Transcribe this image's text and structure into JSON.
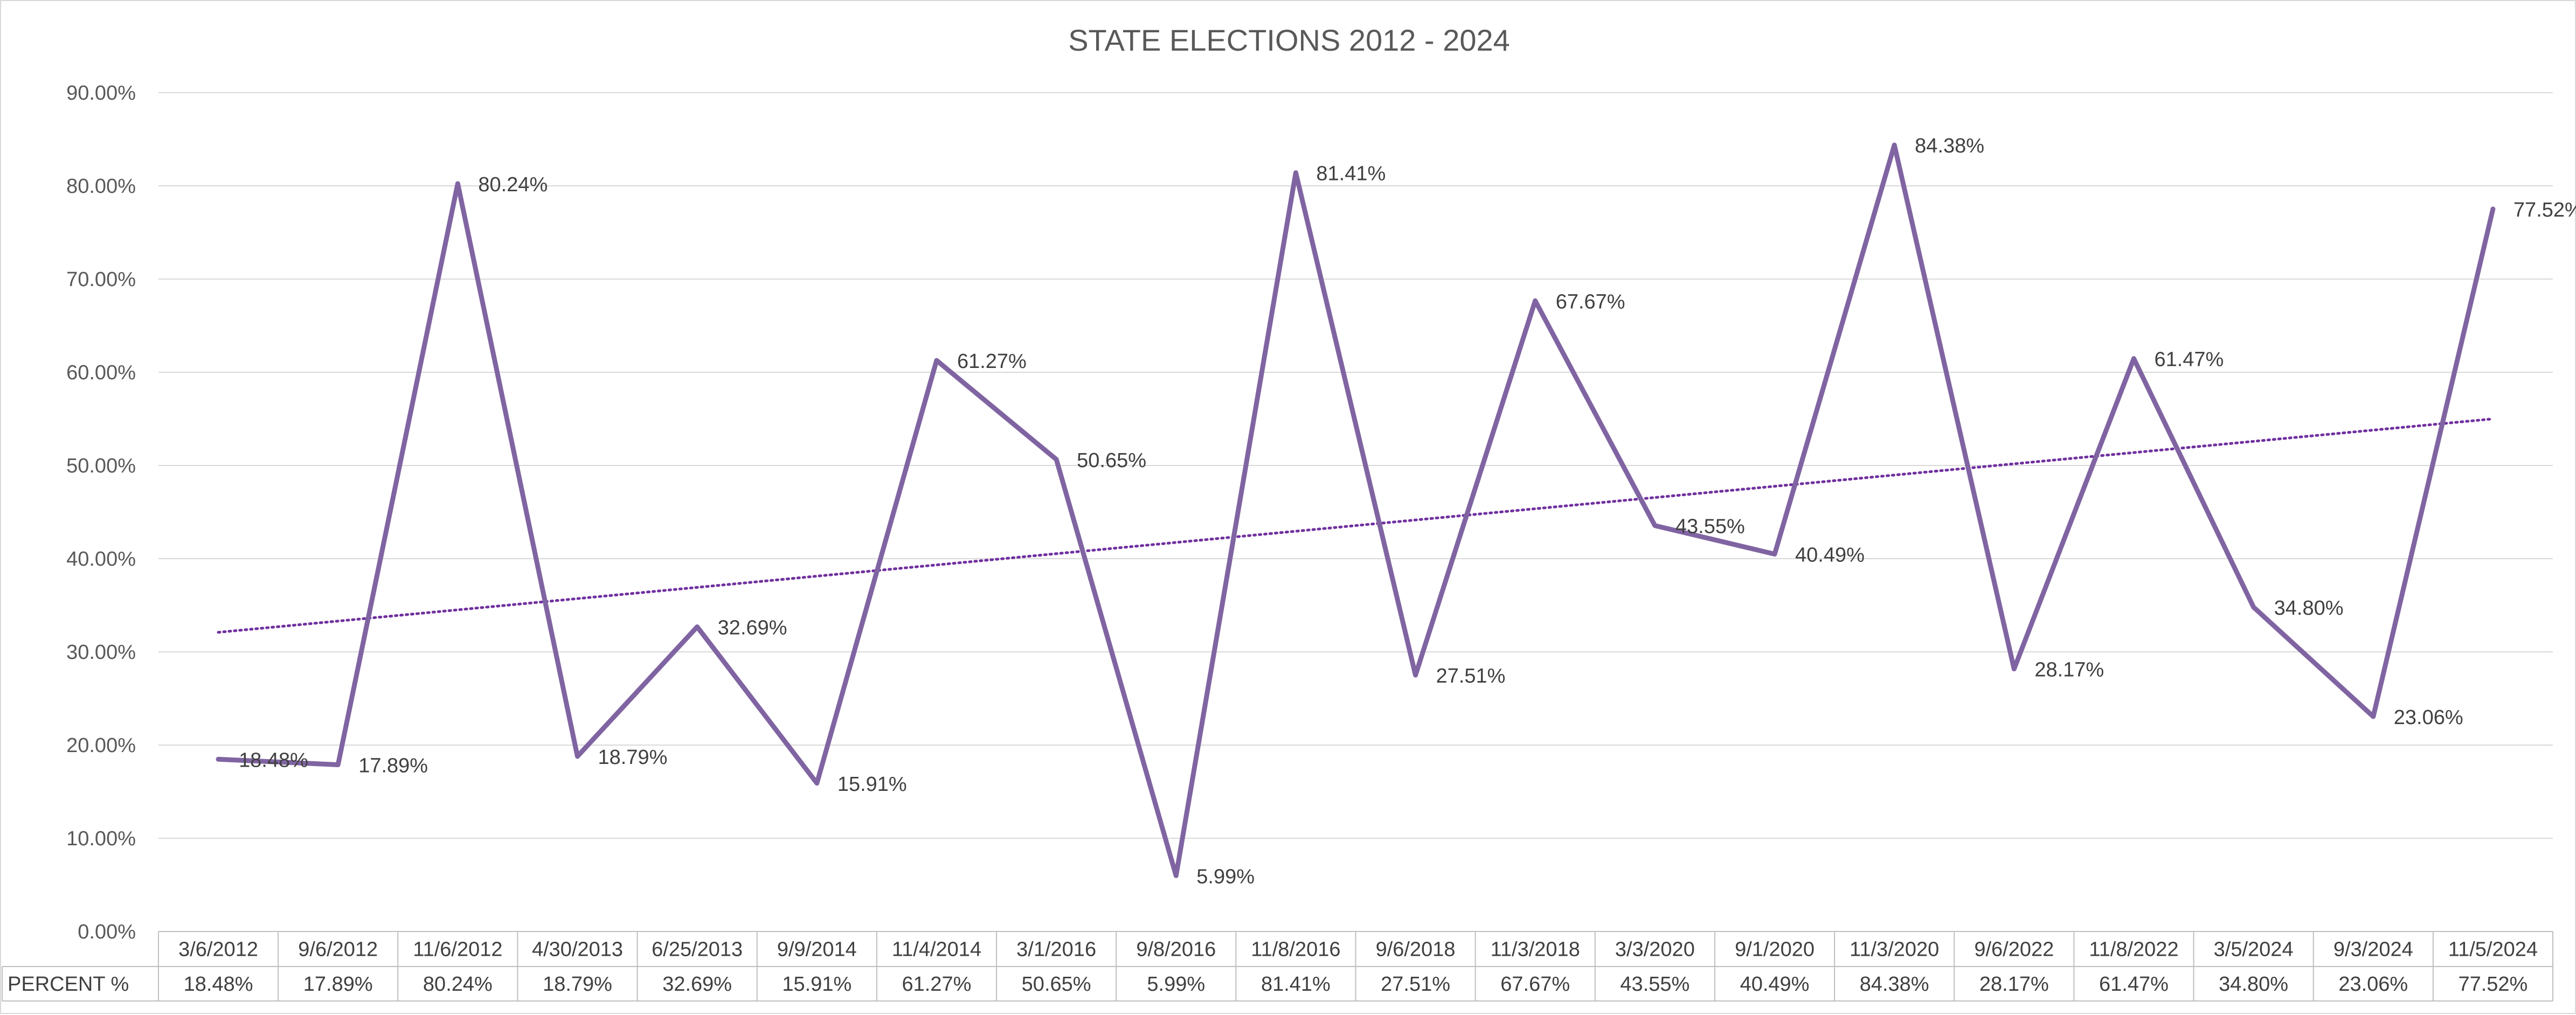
{
  "chart_data": {
    "type": "line",
    "title": "STATE ELECTIONS 2012 - 2024",
    "xlabel": "",
    "ylabel": "",
    "ylim": [
      0,
      90
    ],
    "y_ticks": [
      "0.00%",
      "10.00%",
      "20.00%",
      "30.00%",
      "40.00%",
      "50.00%",
      "60.00%",
      "70.00%",
      "80.00%",
      "90.00%"
    ],
    "y_tick_values": [
      0,
      10,
      20,
      30,
      40,
      50,
      60,
      70,
      80,
      90
    ],
    "grid": true,
    "categories": [
      "3/6/2012",
      "9/6/2012",
      "11/6/2012",
      "4/30/2013",
      "6/25/2013",
      "9/9/2014",
      "11/4/2014",
      "3/1/2016",
      "9/8/2016",
      "11/8/2016",
      "9/6/2018",
      "11/3/2018",
      "3/3/2020",
      "9/1/2020",
      "11/3/2020",
      "9/6/2022",
      "11/8/2022",
      "3/5/2024",
      "9/3/2024",
      "11/5/2024"
    ],
    "series": [
      {
        "name": "PERCENT %",
        "values": [
          18.48,
          17.89,
          80.24,
          18.79,
          32.69,
          15.91,
          61.27,
          50.65,
          5.99,
          81.41,
          27.51,
          67.67,
          43.55,
          40.49,
          84.38,
          28.17,
          61.47,
          34.8,
          23.06,
          77.52
        ],
        "labels": [
          "18.48%",
          "17.89%",
          "80.24%",
          "18.79%",
          "32.69%",
          "15.91%",
          "61.27%",
          "50.65%",
          "5.99%",
          "81.41%",
          "27.51%",
          "67.67%",
          "43.55%",
          "40.49%",
          "84.38%",
          "28.17%",
          "61.47%",
          "34.80%",
          "23.06%",
          "77.52%"
        ],
        "color": "#8064a2"
      }
    ],
    "trendline": {
      "type": "linear",
      "style": "dotted",
      "color": "#7030a0",
      "start": 32.1,
      "end": 55.0
    },
    "data_table": {
      "row_header": "PERCENT %"
    }
  }
}
